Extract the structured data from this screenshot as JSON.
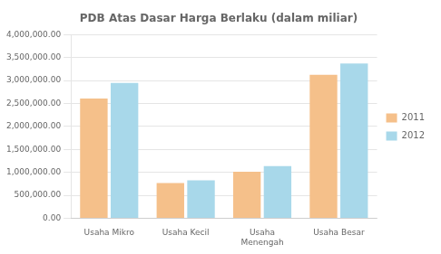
{
  "chart_data": {
    "type": "bar",
    "title": "PDB Atas Dasar Harga Berlaku (dalam miliar)",
    "categories": [
      "Usaha Mikro",
      "Usaha Kecil",
      "Usaha\nMenengah",
      "Usaha Besar"
    ],
    "series": [
      {
        "name": "2011",
        "color": "#F5C08A",
        "values": [
          2609361,
          768093,
          1013012,
          3123961
        ]
      },
      {
        "name": "2012",
        "color": "#A8D8EA",
        "values": [
          2951120,
          825489,
          1135012,
          3372981
        ]
      }
    ],
    "ylim": [
      0,
      4000000
    ],
    "yticks": [
      {
        "value": 0,
        "label": "0.00"
      },
      {
        "value": 500000,
        "label": "500,000.00"
      },
      {
        "value": 1000000,
        "label": "1,000,000.00"
      },
      {
        "value": 1500000,
        "label": "1,500,000.00"
      },
      {
        "value": 2000000,
        "label": "2,000,000.00"
      },
      {
        "value": 2500000,
        "label": "2,500,000.00"
      },
      {
        "value": 3000000,
        "label": "3,000,000.00"
      },
      {
        "value": 3500000,
        "label": "3,500,000.00"
      },
      {
        "value": 4000000,
        "label": "4,000,000.00"
      }
    ],
    "grid": true,
    "legend": "right"
  }
}
